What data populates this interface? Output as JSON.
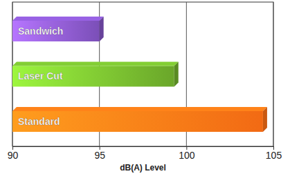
{
  "chart_data": {
    "type": "bar",
    "orientation": "horizontal",
    "x_label": "dB(A) Level",
    "categories": [
      "Sandwich",
      "Laser Cut",
      "Standard"
    ],
    "values": [
      95,
      99.3,
      104.4
    ],
    "colors": [
      "#7b4fb8",
      "#6aa62a",
      "#f26a14"
    ],
    "xlim": [
      90,
      105
    ],
    "xticks": [
      90,
      95,
      100,
      105
    ],
    "grid": true
  }
}
